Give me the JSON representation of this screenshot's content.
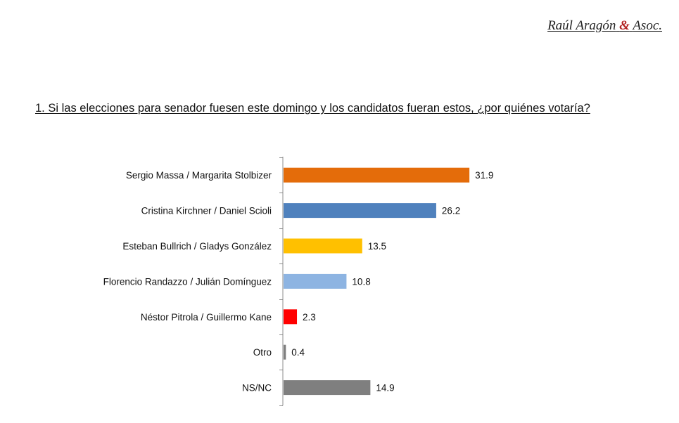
{
  "header": {
    "brand_name": "Raúl Aragón",
    "brand_amp": "&",
    "brand_suffix": "Asoc."
  },
  "question": "1. Si las elecciones para senador fuesen este domingo y los candidatos fueran estos, ¿por quiénes votaría?",
  "chart_data": {
    "type": "bar",
    "orientation": "horizontal",
    "categories": [
      "Sergio Massa / Margarita Stolbizer",
      "Cristina Kirchner / Daniel Scioli",
      "Esteban Bullrich / Gladys González",
      "Florencio Randazzo / Julián Domínguez",
      "Néstor Pitrola / Guillermo Kane",
      "Otro",
      "NS/NC"
    ],
    "values": [
      31.9,
      26.2,
      13.5,
      10.8,
      2.3,
      0.4,
      14.9
    ],
    "value_labels": [
      "31.9",
      "26.2",
      "13.5",
      "10.8",
      "2.3",
      "0.4",
      "14.9"
    ],
    "colors": [
      "#E46C0A",
      "#4F81BD",
      "#FFC000",
      "#8DB4E2",
      "#FF0000",
      "#7F7F7F",
      "#7F7F7F"
    ],
    "xlim": [
      0,
      35
    ],
    "grid": false,
    "legend": "none",
    "title": "",
    "xlabel": "",
    "ylabel": ""
  }
}
